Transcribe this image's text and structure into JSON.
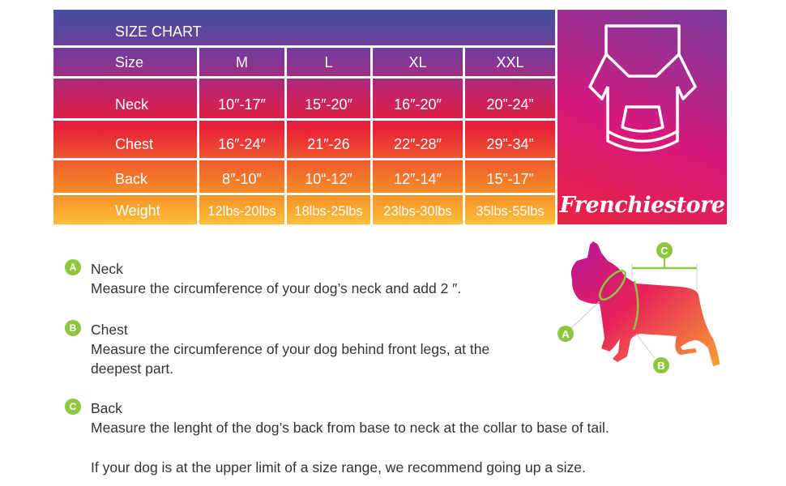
{
  "title": "SIZE CHART",
  "header": {
    "label": "Size",
    "sizes": [
      "M",
      "L",
      "XL",
      "XXL"
    ]
  },
  "rows": [
    {
      "label": "Neck",
      "values": [
        "10″-17″",
        "15″-20″",
        "16″-20″",
        "20”-24”"
      ]
    },
    {
      "label": "Chest",
      "values": [
        "16″-24″",
        "21″-26",
        "22″-28″",
        "29”-34”"
      ]
    },
    {
      "label": "Back",
      "values": [
        "8″-10″",
        "10“-12″",
        "12″-14″",
        "15”-17”"
      ]
    },
    {
      "label": "Weight",
      "values": [
        "12lbs-20lbs",
        "18lbs-25lbs",
        "23lbs-30lbs",
        "35lbs-55lbs"
      ]
    }
  ],
  "brand": {
    "name": "Frenchiestore",
    "icon": "hoodie-icon"
  },
  "instructions": [
    {
      "badge": "A",
      "title": "Neck",
      "text": "Measure the circumference of your dog’s neck and add 2 ″."
    },
    {
      "badge": "B",
      "title": "Chest",
      "text": "Measure the circumference of your dog behind front legs, at the deepest part."
    },
    {
      "badge": "C",
      "title": "Back",
      "text": "Measure the lenght of the dog’s back from base to neck at the collar to base of tail."
    }
  ],
  "note": "If your dog is at the upper limit of a size range, we recommend going up a size.",
  "diagram": {
    "labels": [
      "A",
      "B",
      "C"
    ]
  },
  "colors": {
    "badge": "#8dc63f",
    "gradient_top": "#45509f",
    "gradient_mid": "#e7203a",
    "gradient_bottom": "#fbbf3a"
  }
}
